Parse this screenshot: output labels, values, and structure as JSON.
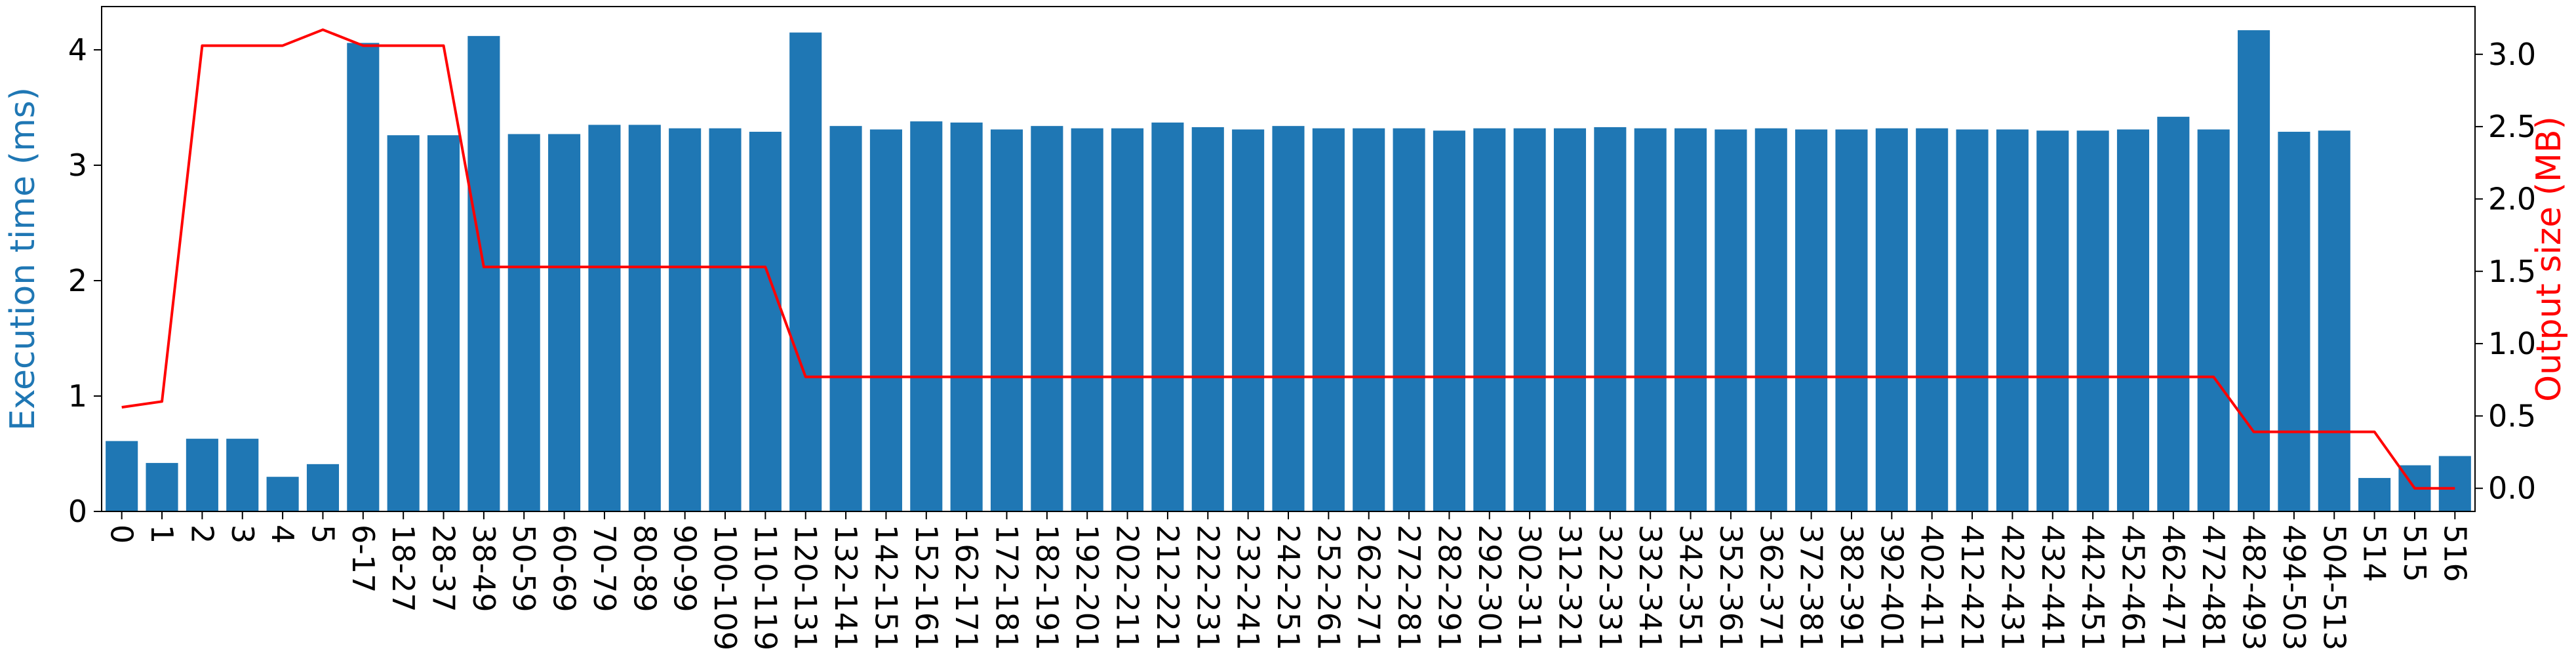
{
  "chart_data": {
    "type": "bar",
    "categories": [
      "0",
      "1",
      "2",
      "3",
      "4",
      "5",
      "6-17",
      "18-27",
      "28-37",
      "38-49",
      "50-59",
      "60-69",
      "70-79",
      "80-89",
      "90-99",
      "100-109",
      "110-119",
      "120-131",
      "132-141",
      "142-151",
      "152-161",
      "162-171",
      "172-181",
      "182-191",
      "192-201",
      "202-211",
      "212-221",
      "222-231",
      "232-241",
      "242-251",
      "252-261",
      "262-271",
      "272-281",
      "282-291",
      "292-301",
      "302-311",
      "312-321",
      "322-331",
      "332-341",
      "342-351",
      "352-361",
      "362-371",
      "372-381",
      "382-391",
      "392-401",
      "402-411",
      "412-421",
      "422-431",
      "432-441",
      "442-451",
      "452-461",
      "462-471",
      "472-481",
      "482-493",
      "494-503",
      "504-513",
      "514",
      "515",
      "516"
    ],
    "series": [
      {
        "axis": "left",
        "kind": "bar",
        "color": "#1f77b4",
        "values": [
          0.61,
          0.42,
          0.63,
          0.63,
          0.3,
          0.41,
          4.06,
          3.26,
          3.26,
          4.12,
          3.27,
          3.27,
          3.35,
          3.35,
          3.32,
          3.32,
          3.29,
          4.15,
          3.34,
          3.31,
          3.38,
          3.37,
          3.31,
          3.34,
          3.32,
          3.32,
          3.37,
          3.33,
          3.31,
          3.34,
          3.32,
          3.32,
          3.32,
          3.3,
          3.32,
          3.32,
          3.32,
          3.33,
          3.32,
          3.32,
          3.31,
          3.32,
          3.31,
          3.31,
          3.32,
          3.32,
          3.31,
          3.31,
          3.3,
          3.3,
          3.31,
          3.42,
          3.31,
          4.17,
          3.29,
          3.3,
          0.29,
          0.4,
          0.48
        ]
      },
      {
        "axis": "right",
        "kind": "line",
        "color": "#ff0000",
        "values": [
          0.56,
          0.6,
          3.06,
          3.06,
          3.06,
          3.17,
          3.06,
          3.06,
          3.06,
          1.53,
          1.53,
          1.53,
          1.53,
          1.53,
          1.53,
          1.53,
          1.53,
          0.77,
          0.77,
          0.77,
          0.77,
          0.77,
          0.77,
          0.77,
          0.77,
          0.77,
          0.77,
          0.77,
          0.77,
          0.77,
          0.77,
          0.77,
          0.77,
          0.77,
          0.77,
          0.77,
          0.77,
          0.77,
          0.77,
          0.77,
          0.77,
          0.77,
          0.77,
          0.77,
          0.77,
          0.77,
          0.77,
          0.77,
          0.77,
          0.77,
          0.77,
          0.77,
          0.77,
          0.39,
          0.39,
          0.39,
          0.39,
          0.0,
          0.0
        ]
      }
    ],
    "xlabel": "",
    "ylabel": "Execution time (ms)",
    "ylabel_color": "#1f77b4",
    "ylim": [
      0,
      4.375
    ],
    "yticks": [
      "0",
      "1",
      "2",
      "3",
      "4"
    ],
    "y2label": "Output size (MB)",
    "y2label_color": "#ff0000",
    "y2lim": [
      -0.16,
      3.33
    ],
    "y2ticks": [
      "0.0",
      "0.5",
      "1.0",
      "1.5",
      "2.0",
      "2.5",
      "3.0"
    ],
    "grid": false,
    "legend": "none"
  }
}
